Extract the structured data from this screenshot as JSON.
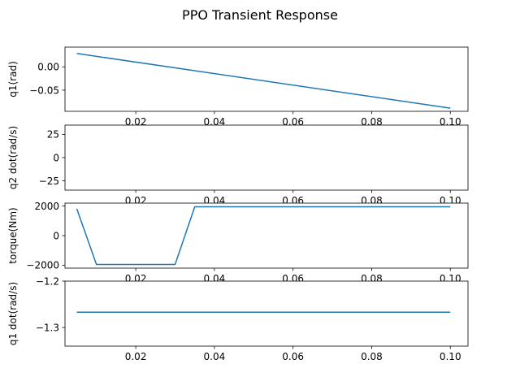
{
  "chart_data": {
    "type": "line",
    "title": "PPO Transient Response",
    "x_ticks": [
      "0.02",
      "0.04",
      "0.06",
      "0.08",
      "0.10"
    ],
    "x_tick_values": [
      0.02,
      0.04,
      0.06,
      0.08,
      0.1
    ],
    "xlim": [
      0.002,
      0.1045
    ],
    "line_color": "#1f77b4",
    "subplots": [
      {
        "ylabel": "q1(rad)",
        "ylim": [
          -0.0955,
          0.0425
        ],
        "y_ticks": [
          "0.00",
          "−0.05"
        ],
        "y_tick_values": [
          0.0,
          -0.05
        ],
        "series": [
          {
            "x": [
              0.005,
              0.1
            ],
            "y": [
              0.0288,
              -0.0887
            ]
          }
        ]
      },
      {
        "ylabel": "q2 dot(rad/s)",
        "ylim": [
          -35,
          35
        ],
        "y_ticks": [
          "25",
          "0",
          "−25"
        ],
        "y_tick_values": [
          25,
          0,
          -25
        ],
        "series": []
      },
      {
        "ylabel": "torque(Nm)",
        "ylim": [
          -2200,
          2200
        ],
        "y_ticks": [
          "2000",
          "0",
          "−2000"
        ],
        "y_tick_values": [
          2000,
          0,
          -2000
        ],
        "series": [
          {
            "x": [
              0.005,
              0.01,
              0.015,
              0.02,
              0.025,
              0.03,
              0.035,
              0.04,
              0.045,
              0.05,
              0.055,
              0.06,
              0.065,
              0.07,
              0.075,
              0.08,
              0.085,
              0.09,
              0.095,
              0.1
            ],
            "y": [
              1820,
              -1950,
              -1950,
              -1950,
              -1950,
              -1950,
              1950,
              1950,
              1950,
              1950,
              1950,
              1950,
              1950,
              1950,
              1950,
              1950,
              1950,
              1950,
              1950,
              1950
            ]
          }
        ]
      },
      {
        "ylabel": "q1 dot(rad/s)",
        "ylim": [
          -1.34,
          -1.2
        ],
        "y_ticks": [
          "−1.2",
          "−1.3"
        ],
        "y_tick_values": [
          -1.2,
          -1.3
        ],
        "series": [
          {
            "x": [
              0.005,
              0.1
            ],
            "y": [
              -1.267,
              -1.267
            ]
          }
        ]
      }
    ]
  }
}
